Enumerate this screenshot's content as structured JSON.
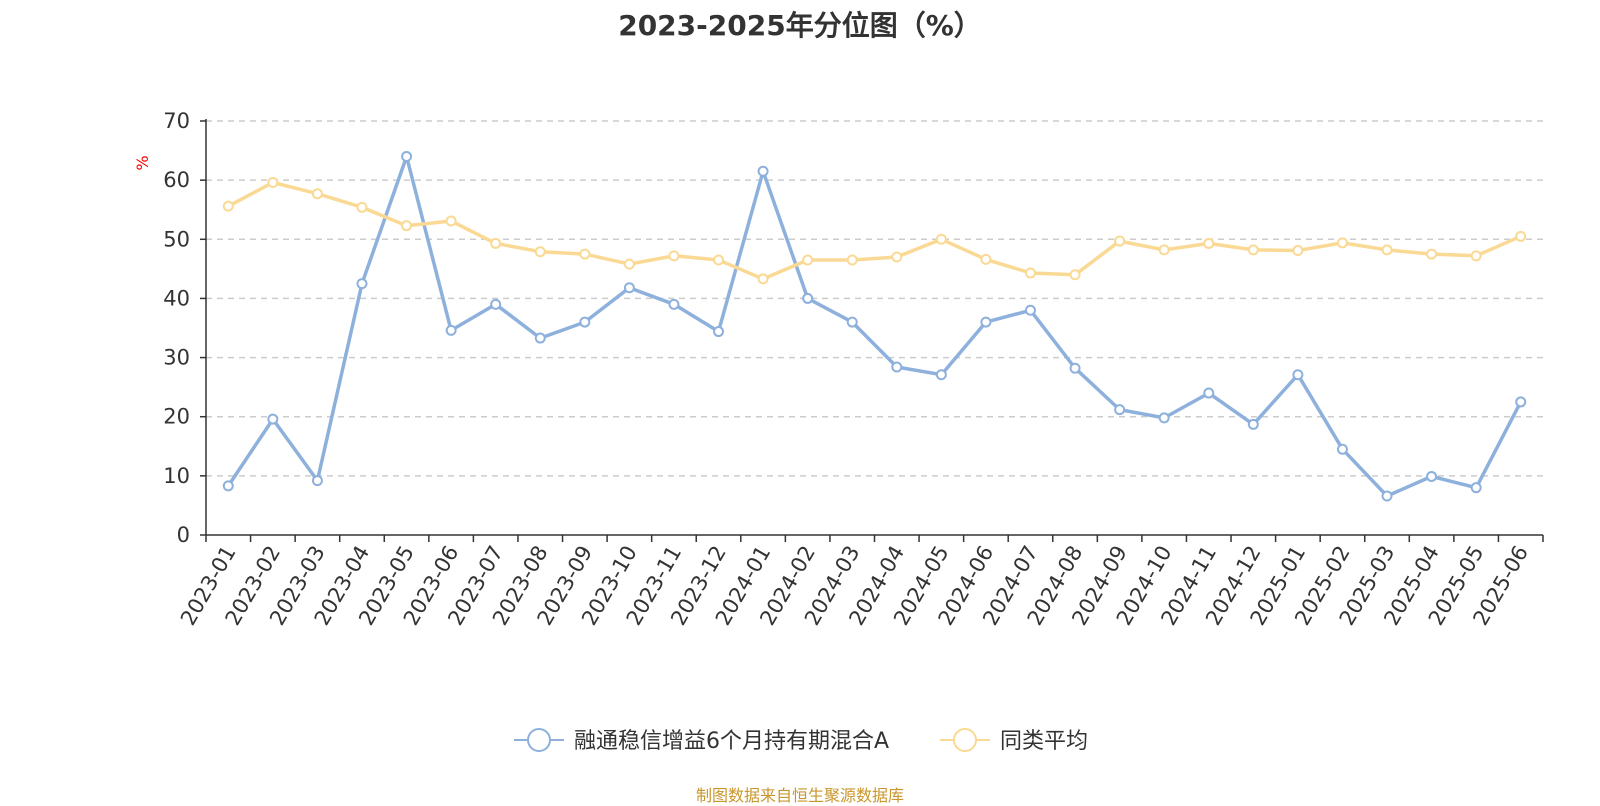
{
  "chart_data": {
    "type": "line",
    "title": "2023-2025年分位图（%）",
    "ylabel": "%",
    "xlabel": "",
    "ylim": [
      0,
      70
    ],
    "yticks": [
      0,
      10,
      20,
      30,
      40,
      50,
      60,
      70
    ],
    "grid": true,
    "legend_position": "bottom",
    "categories": [
      "2023-01",
      "2023-02",
      "2023-03",
      "2023-04",
      "2023-05",
      "2023-06",
      "2023-07",
      "2023-08",
      "2023-09",
      "2023-10",
      "2023-11",
      "2023-12",
      "2024-01",
      "2024-02",
      "2024-03",
      "2024-04",
      "2024-05",
      "2024-06",
      "2024-07",
      "2024-08",
      "2024-09",
      "2024-10",
      "2024-11",
      "2024-12",
      "2025-01",
      "2025-02",
      "2025-03",
      "2025-04",
      "2025-05",
      "2025-06"
    ],
    "series": [
      {
        "name": "融通稳信增益6个月持有期混合A",
        "color": "#8eb0dc",
        "values": [
          8.3,
          19.6,
          9.2,
          42.5,
          64.0,
          34.6,
          39.0,
          33.3,
          36.0,
          41.8,
          39.0,
          34.4,
          61.5,
          40.0,
          36.0,
          28.4,
          27.1,
          36.0,
          38.0,
          28.2,
          21.2,
          19.8,
          24.0,
          18.7,
          27.1,
          14.5,
          6.6,
          9.9,
          8.0,
          22.5
        ]
      },
      {
        "name": "同类平均",
        "color": "#fad995",
        "values": [
          55.6,
          59.6,
          57.7,
          55.4,
          52.3,
          53.1,
          49.3,
          47.9,
          47.5,
          45.8,
          47.2,
          46.5,
          43.3,
          46.5,
          46.5,
          47.0,
          50.0,
          46.6,
          44.3,
          44.0,
          49.7,
          48.2,
          49.3,
          48.2,
          48.1,
          49.4,
          48.2,
          47.5,
          47.2,
          50.5
        ]
      }
    ]
  },
  "source_note": "制图数据来自恒生聚源数据库"
}
